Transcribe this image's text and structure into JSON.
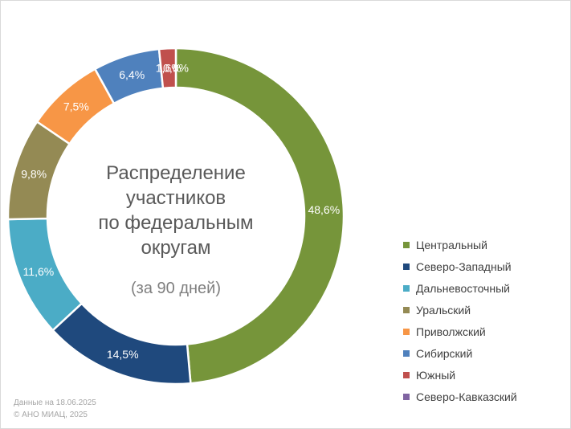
{
  "chart_data": {
    "type": "donut",
    "title": [
      "Распределение",
      "участников",
      "по федеральным",
      "округам"
    ],
    "subtitle": "(за 90 дней)",
    "legend_position": "right",
    "series": [
      {
        "name": "Центральный",
        "value": 48.6,
        "label": "48,6%",
        "color": "#76953A"
      },
      {
        "name": "Северо-Западный",
        "value": 14.5,
        "label": "14,5%",
        "color": "#1F497D"
      },
      {
        "name": "Дальневосточный",
        "value": 11.6,
        "label": "11,6%",
        "color": "#4BACC6"
      },
      {
        "name": "Уральский",
        "value": 9.8,
        "label": "9,8%",
        "color": "#948A54"
      },
      {
        "name": "Приволжский",
        "value": 7.5,
        "label": "7,5%",
        "color": "#F79646"
      },
      {
        "name": "Сибирский",
        "value": 6.4,
        "label": "6,4%",
        "color": "#4F81BD"
      },
      {
        "name": "Южный",
        "value": 1.6,
        "label": "1,6%",
        "color": "#C0504D"
      },
      {
        "name": "Северо-Кавказский",
        "value": 0.0,
        "label": "0,0%",
        "color": "#8064A2"
      }
    ]
  },
  "footnote": {
    "date_line": "Данные на 18.06.2025",
    "copyright_line": "© АНО МИАЦ, 2025"
  }
}
